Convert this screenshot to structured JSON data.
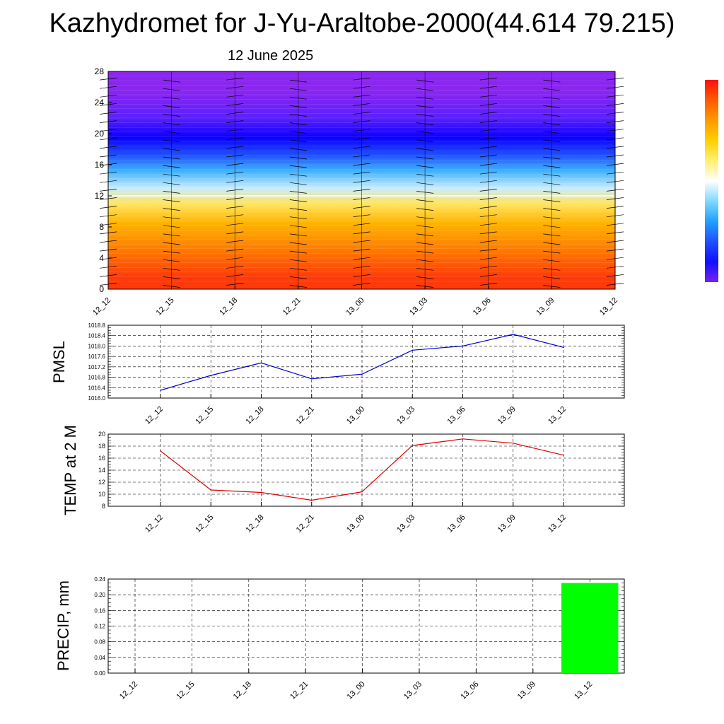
{
  "title": "Kazhydromet for J-Yu-Araltobe-2000(44.614 79.215)",
  "subtitle": "12 June 2025",
  "chart_data": [
    {
      "type": "heatmap",
      "title": "",
      "xlabel": "",
      "ylabel": "",
      "x_ticks": [
        "12_12",
        "12_15",
        "12_18",
        "12_21",
        "13_00",
        "13_03",
        "13_06",
        "13_09",
        "13_12"
      ],
      "y_ticks": [
        0,
        4,
        8,
        12,
        16,
        20,
        24,
        28
      ],
      "ylim": [
        0,
        28
      ],
      "temperature_bands": [
        {
          "from": 0,
          "to": 3,
          "color": "#ff3a0a"
        },
        {
          "from": 3,
          "to": 7,
          "color": "#ff7a00"
        },
        {
          "from": 7,
          "to": 10,
          "color": "#ffb400"
        },
        {
          "from": 10,
          "to": 12,
          "color": "#ffe560"
        },
        {
          "from": 12,
          "to": 14,
          "color": "#c8ecff"
        },
        {
          "from": 14,
          "to": 16.5,
          "color": "#3cb0ff"
        },
        {
          "from": 16.5,
          "to": 18,
          "color": "#2050ff"
        },
        {
          "from": 18,
          "to": 21,
          "color": "#0a00ff"
        },
        {
          "from": 21,
          "to": 23,
          "color": "#5a20ff"
        },
        {
          "from": 23,
          "to": 28,
          "color": "#8a26f0"
        }
      ],
      "colorbar": [
        "#ff1010",
        "#ff5a00",
        "#ff9a00",
        "#ffd000",
        "#fff070",
        "#ffffff",
        "#80d8ff",
        "#20a0ff",
        "#2050ff",
        "#1010ff",
        "#7a20f0"
      ],
      "wind_barbs": "vertical profiles at each time"
    },
    {
      "type": "line",
      "ylabel": "PMSL",
      "x": [
        "12_12",
        "12_15",
        "12_18",
        "12_21",
        "13_00",
        "13_03",
        "13_06",
        "13_09",
        "13_12"
      ],
      "y_ticks": [
        "1016.0",
        "1016.4",
        "1016.8",
        "1017.2",
        "1017.6",
        "1018.0",
        "1018.4",
        "1018.8"
      ],
      "ylim": [
        1016.0,
        1018.8
      ],
      "values": [
        1016.3,
        1016.87,
        1017.35,
        1016.74,
        1016.92,
        1017.84,
        1018.0,
        1018.45,
        1017.95
      ],
      "color": "#0000cc"
    },
    {
      "type": "line",
      "ylabel": "TEMP at 2 M",
      "x": [
        "12_12",
        "12_15",
        "12_18",
        "12_21",
        "13_00",
        "13_03",
        "13_06",
        "13_09",
        "13_12"
      ],
      "y_ticks": [
        "8",
        "10",
        "12",
        "14",
        "16",
        "18",
        "20"
      ],
      "ylim": [
        8,
        20
      ],
      "values": [
        17.2,
        10.7,
        10.3,
        9.0,
        10.4,
        18.1,
        19.2,
        18.5,
        16.5
      ],
      "color": "#dd0000"
    },
    {
      "type": "bar",
      "ylabel": "PRECIP, mm",
      "x": [
        "12_12",
        "12_15",
        "12_18",
        "12_21",
        "13_00",
        "13_03",
        "13_06",
        "13_09",
        "13_12"
      ],
      "y_ticks": [
        "0.00",
        "0.04",
        "0.08",
        "0.12",
        "0.16",
        "0.20",
        "0.24"
      ],
      "ylim": [
        0,
        0.24
      ],
      "values": [
        0,
        0,
        0,
        0,
        0,
        0,
        0,
        0,
        0.23
      ],
      "color": "#00ff00"
    }
  ]
}
